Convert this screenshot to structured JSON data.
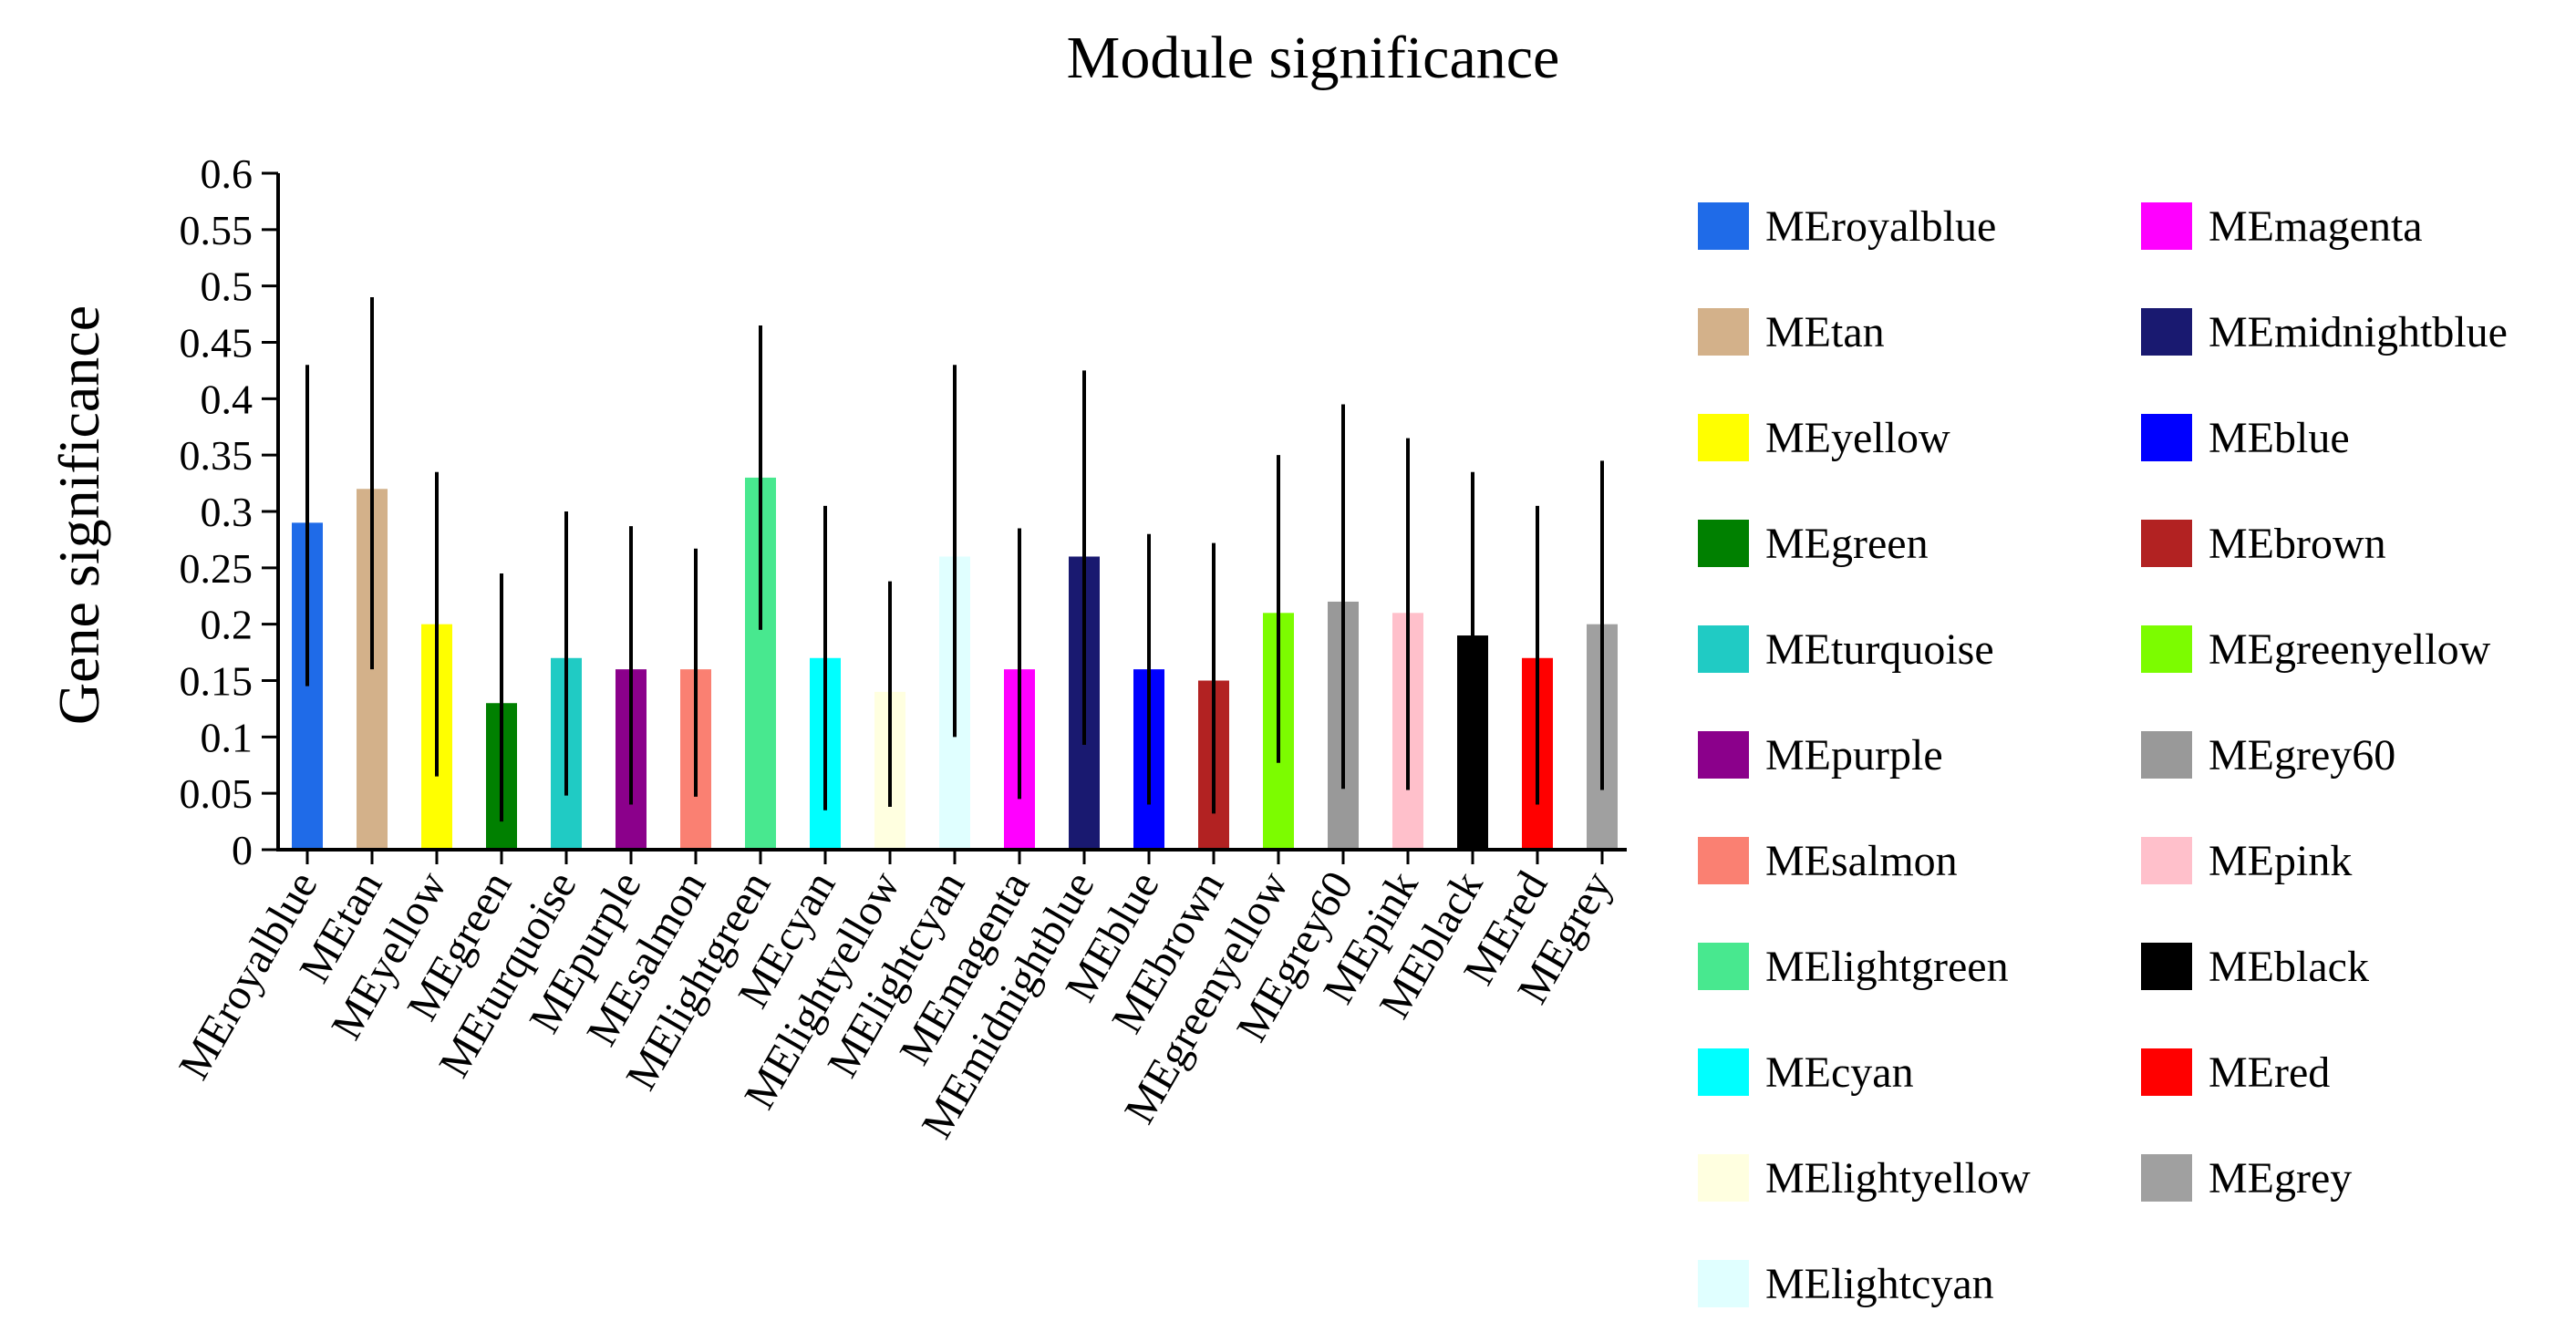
{
  "chart_data": {
    "type": "bar",
    "title": "Module significance",
    "xlabel": "",
    "ylabel": "Gene significance",
    "ylim": [
      0,
      0.6
    ],
    "yticks": [
      "0",
      "0.05",
      "0.1",
      "0.15",
      "0.2",
      "0.25",
      "0.3",
      "0.35",
      "0.4",
      "0.45",
      "0.5",
      "0.55",
      "0.6"
    ],
    "grid": false,
    "legend_position": "right",
    "categories": [
      "MEroyalblue",
      "MEtan",
      "MEyellow",
      "MEgreen",
      "MEturquoise",
      "MEpurple",
      "MEsalmon",
      "MElightgreen",
      "MEcyan",
      "MElightyellow",
      "MElightcyan",
      "MEmagenta",
      "MEmidnightblue",
      "MEblue",
      "MEbrown",
      "MEgreenyellow",
      "MEgrey60",
      "MEpink",
      "MEblack",
      "MEred",
      "MEgrey"
    ],
    "values": [
      0.29,
      0.32,
      0.2,
      0.13,
      0.17,
      0.16,
      0.16,
      0.33,
      0.17,
      0.14,
      0.26,
      0.16,
      0.26,
      0.16,
      0.15,
      0.21,
      0.22,
      0.21,
      0.19,
      0.17,
      0.2
    ],
    "error_low": [
      0.145,
      0.16,
      0.065,
      0.025,
      0.048,
      0.04,
      0.047,
      0.195,
      0.035,
      0.038,
      0.1,
      0.045,
      0.093,
      0.04,
      0.032,
      0.077,
      0.054,
      0.053,
      0.045,
      0.04,
      0.053
    ],
    "error_high": [
      0.43,
      0.49,
      0.335,
      0.245,
      0.3,
      0.287,
      0.267,
      0.465,
      0.305,
      0.238,
      0.43,
      0.285,
      0.425,
      0.28,
      0.272,
      0.35,
      0.395,
      0.365,
      0.335,
      0.305,
      0.345
    ],
    "colors": [
      "#1F6BE8",
      "#D3B18A",
      "#FFFF00",
      "#008000",
      "#20CBC4",
      "#8B008B",
      "#FA8072",
      "#48E88F",
      "#00FFFF",
      "#FFFFE0",
      "#E0FFFF",
      "#FF00FF",
      "#191970",
      "#0000FF",
      "#B22222",
      "#7CFC00",
      "#999999",
      "#FFC0CB",
      "#000000",
      "#FF0000",
      "#A0A0A0"
    ],
    "legend": [
      {
        "label": "MEroyalblue",
        "color": "#1F6BE8"
      },
      {
        "label": "MEtan",
        "color": "#D3B18A"
      },
      {
        "label": "MEyellow",
        "color": "#FFFF00"
      },
      {
        "label": "MEgreen",
        "color": "#008000"
      },
      {
        "label": "MEturquoise",
        "color": "#20CBC4"
      },
      {
        "label": "MEpurple",
        "color": "#8B008B"
      },
      {
        "label": "MEsalmon",
        "color": "#FA8072"
      },
      {
        "label": "MElightgreen",
        "color": "#48E88F"
      },
      {
        "label": "MEcyan",
        "color": "#00FFFF"
      },
      {
        "label": "MElightyellow",
        "color": "#FFFFE0"
      },
      {
        "label": "MElightcyan",
        "color": "#E0FFFF"
      },
      {
        "label": "MEmagenta",
        "color": "#FF00FF"
      },
      {
        "label": "MEmidnightblue",
        "color": "#191970"
      },
      {
        "label": "MEblue",
        "color": "#0000FF"
      },
      {
        "label": "MEbrown",
        "color": "#B22222"
      },
      {
        "label": "MEgreenyellow",
        "color": "#7CFC00"
      },
      {
        "label": "MEgrey60",
        "color": "#999999"
      },
      {
        "label": "MEpink",
        "color": "#FFC0CB"
      },
      {
        "label": "MEblack",
        "color": "#000000"
      },
      {
        "label": "MEred",
        "color": "#FF0000"
      },
      {
        "label": "MEgrey",
        "color": "#A0A0A0"
      }
    ]
  }
}
